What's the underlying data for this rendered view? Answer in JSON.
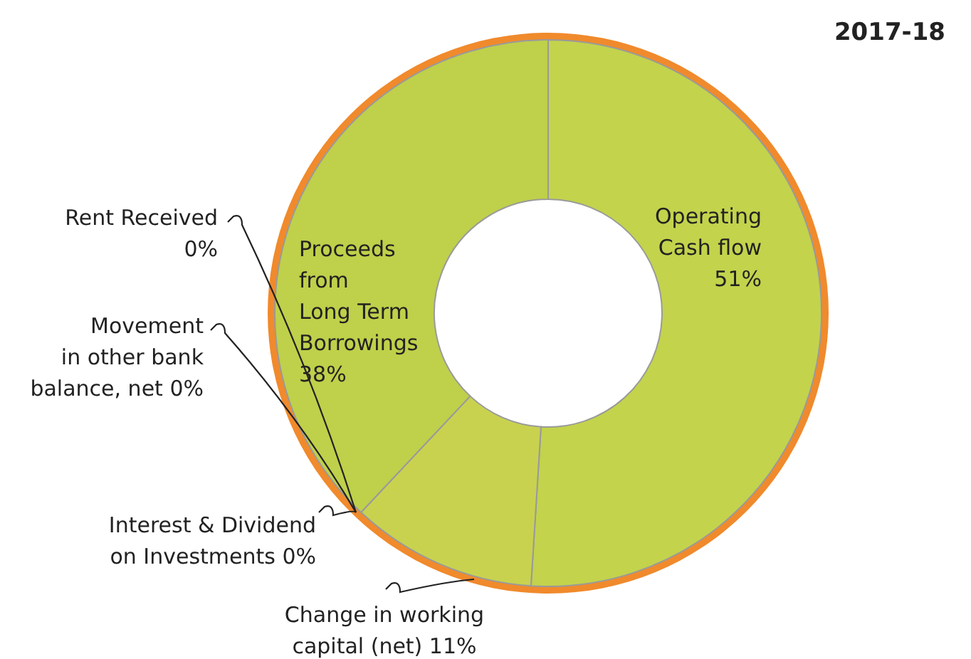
{
  "chart_data": {
    "type": "donut",
    "title": "2017-18",
    "categories": [
      "Operating Cash flow",
      "Change in working capital (net)",
      "Interest & Dividend on Investments",
      "Movement in other bank balance, net",
      "Rent Received",
      "Proceeds from Long Term Borrowings"
    ],
    "values": [
      51,
      11,
      0,
      0,
      0,
      38
    ],
    "value_labels": [
      "51%",
      "11%",
      "0%",
      "0%",
      "0%",
      "38%"
    ],
    "colors": [
      "#c3d34c",
      "#c9d24f",
      "#e0383a",
      "#e0383a",
      "#e0383a",
      "#bfd04a"
    ]
  }
}
